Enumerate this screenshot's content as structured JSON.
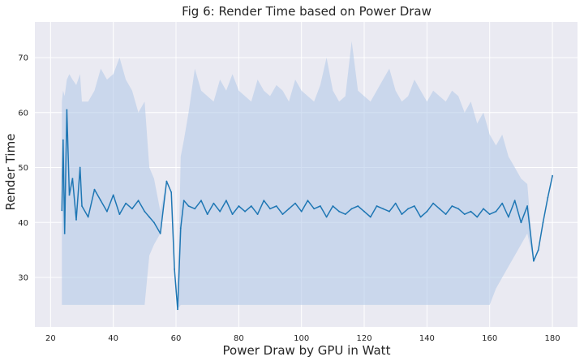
{
  "chart_data": {
    "type": "line",
    "title": "Fig 6: Render Time based on Power Draw",
    "xlabel": "Power Draw by GPU in Watt",
    "ylabel": "Render Time",
    "xlim": [
      15,
      188
    ],
    "ylim": [
      21,
      76.5
    ],
    "xticks": [
      20,
      40,
      60,
      80,
      100,
      120,
      140,
      160,
      180
    ],
    "yticks": [
      30,
      40,
      50,
      60,
      70
    ],
    "grid": true,
    "style": {
      "background": "#eaeaf2",
      "grid_color": "#ffffff",
      "line_color": "#1f77b4",
      "band_color": "#aec7e8"
    },
    "series": [
      {
        "x": [
          23.6,
          24.0,
          24.5,
          25.2,
          26.0,
          27.0,
          28.2,
          29.4,
          30.0,
          32.0,
          34.0,
          36.0,
          38.0,
          40.0,
          42.0,
          44.0,
          46.0,
          48.0,
          50.0,
          51.5,
          53.0,
          55.0,
          57.0,
          58.5,
          59.5,
          60.5,
          61.5,
          62.5,
          64.0,
          66.0,
          68.0,
          70.0,
          72.0,
          74.0,
          76.0,
          78.0,
          80.0,
          82.0,
          84.0,
          86.0,
          88.0,
          90.0,
          92.0,
          94.0,
          96.0,
          98.0,
          100.0,
          102.0,
          104.0,
          106.0,
          108.0,
          110.0,
          112.0,
          114.0,
          116.0,
          118.0,
          120.0,
          122.0,
          124.0,
          126.0,
          128.0,
          130.0,
          132.0,
          134.0,
          136.0,
          138.0,
          140.0,
          142.0,
          144.0,
          146.0,
          148.0,
          150.0,
          152.0,
          154.0,
          156.0,
          158.0,
          160.0,
          162.0,
          164.0,
          166.0,
          168.0,
          170.0,
          172.0,
          174.0,
          175.5,
          177.0,
          178.5,
          180.0
        ],
        "y": [
          42.2,
          55.0,
          38.0,
          60.5,
          45.0,
          48.0,
          40.5,
          50.0,
          43.0,
          41.0,
          46.0,
          44.0,
          42.0,
          45.0,
          41.5,
          43.5,
          42.5,
          44.0,
          42.0,
          41.0,
          40.0,
          38.0,
          47.5,
          45.5,
          31.5,
          24.2,
          39.0,
          44.0,
          43.0,
          42.5,
          44.0,
          41.5,
          43.5,
          42.0,
          44.0,
          41.5,
          43.0,
          42.0,
          43.0,
          41.5,
          44.0,
          42.5,
          43.0,
          41.5,
          42.5,
          43.5,
          42.0,
          44.0,
          42.5,
          43.0,
          41.0,
          43.0,
          42.0,
          41.5,
          42.5,
          43.0,
          42.0,
          41.0,
          43.0,
          42.5,
          42.0,
          43.5,
          41.5,
          42.5,
          43.0,
          41.0,
          42.0,
          43.5,
          42.5,
          41.5,
          43.0,
          42.5,
          41.5,
          42.0,
          41.0,
          42.5,
          41.5,
          42.0,
          43.5,
          41.0,
          44.0,
          40.0,
          43.0,
          33.0,
          35.0,
          40.0,
          44.5,
          48.5
        ],
        "band_lower": [
          25.0,
          25.0,
          25.0,
          25.0,
          25.0,
          25.0,
          25.0,
          25.0,
          25.0,
          25.0,
          25.0,
          25.0,
          25.0,
          25.0,
          25.0,
          25.0,
          25.0,
          25.0,
          25.0,
          34.0,
          36.0,
          38.0,
          47.5,
          45.5,
          31.5,
          24.2,
          25.0,
          25.0,
          25.0,
          25.0,
          25.0,
          25.0,
          25.0,
          25.0,
          25.0,
          25.0,
          25.0,
          25.0,
          25.0,
          25.0,
          25.0,
          25.0,
          25.0,
          25.0,
          25.0,
          25.0,
          25.0,
          25.0,
          25.0,
          25.0,
          25.0,
          25.0,
          25.0,
          25.0,
          25.0,
          25.0,
          25.0,
          25.0,
          25.0,
          25.0,
          25.0,
          25.0,
          25.0,
          25.0,
          25.0,
          25.0,
          25.0,
          25.0,
          25.0,
          25.0,
          25.0,
          25.0,
          25.0,
          25.0,
          25.0,
          25.0,
          25.0,
          28.0,
          30.0,
          32.0,
          34.0,
          36.0,
          38.0,
          33.0,
          35.0,
          40.0,
          44.5,
          48.5
        ],
        "band_upper": [
          62.0,
          64.0,
          63.0,
          66.0,
          67.0,
          66.0,
          65.0,
          67.0,
          62.0,
          62.0,
          64.0,
          68.0,
          66.0,
          67.0,
          70.0,
          66.0,
          64.0,
          60.0,
          62.0,
          50.0,
          48.0,
          42.0,
          47.5,
          45.5,
          31.5,
          24.2,
          52.0,
          55.0,
          60.0,
          68.0,
          64.0,
          63.0,
          62.0,
          66.0,
          64.0,
          67.0,
          64.0,
          63.0,
          62.0,
          66.0,
          64.0,
          63.0,
          65.0,
          64.0,
          62.0,
          66.0,
          64.0,
          63.0,
          62.0,
          65.0,
          70.0,
          64.0,
          62.0,
          63.0,
          73.0,
          64.0,
          63.0,
          62.0,
          64.0,
          66.0,
          68.0,
          64.0,
          62.0,
          63.0,
          66.0,
          64.0,
          62.0,
          64.0,
          63.0,
          62.0,
          64.0,
          63.0,
          60.0,
          62.0,
          58.0,
          60.0,
          56.0,
          54.0,
          56.0,
          52.0,
          50.0,
          48.0,
          47.0,
          33.0,
          35.0,
          40.0,
          44.5,
          48.5
        ]
      }
    ]
  }
}
